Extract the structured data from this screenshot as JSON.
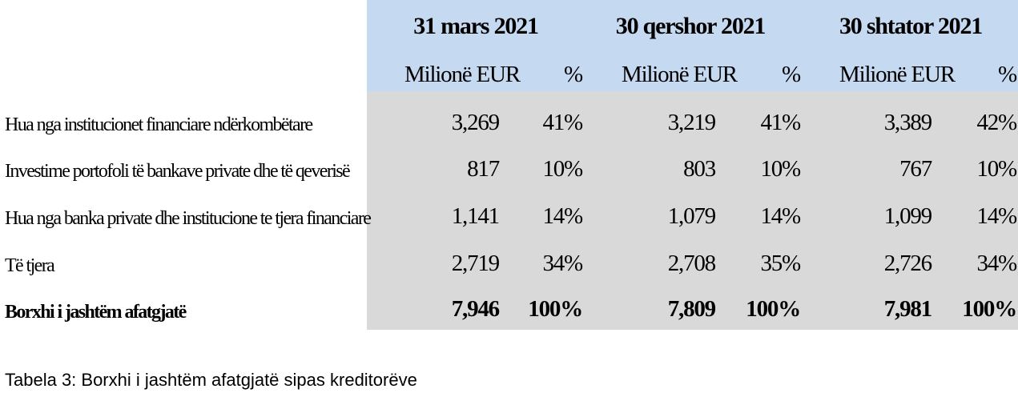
{
  "table": {
    "periods": [
      "31 mars 2021",
      "30 qershor 2021",
      "30 shtator 2021"
    ],
    "unit_value": "Milionë EUR",
    "unit_pct": "%",
    "rows": [
      {
        "label": "Hua nga institucionet financiare ndërkombëtare",
        "cells": [
          "3,269",
          "41%",
          "3,219",
          "41%",
          "3,389",
          "42%"
        ]
      },
      {
        "label": "Investime portofoli të bankave private dhe të qeverisë",
        "cells": [
          "817",
          "10%",
          "803",
          "10%",
          "767",
          "10%"
        ]
      },
      {
        "label": "Hua nga banka private dhe institucione te tjera financiare",
        "cells": [
          "1,141",
          "14%",
          "1,079",
          "14%",
          "1,099",
          "14%"
        ]
      },
      {
        "label": "Të tjera",
        "cells": [
          "2,719",
          "34%",
          "2,708",
          "35%",
          "2,726",
          "34%"
        ]
      },
      {
        "label": "Borxhi i jashtëm afatgjatë",
        "cells": [
          "7,946",
          "100%",
          "7,809",
          "100%",
          "7,981",
          "100%"
        ]
      }
    ]
  },
  "caption": "Tabela 3: Borxhi i jashtëm afatgjatë sipas kreditorëve"
}
